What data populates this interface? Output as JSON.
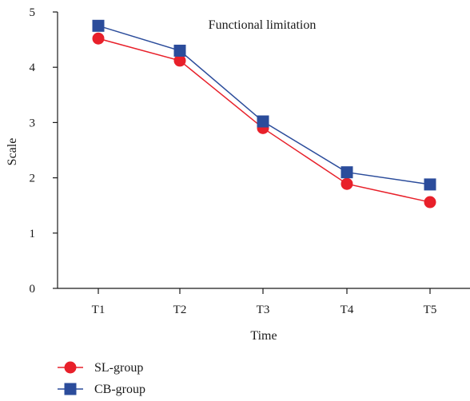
{
  "chart_data": {
    "type": "line",
    "title": "Functional limitation",
    "xlabel": "Time",
    "ylabel": "Scale",
    "categories": [
      "T1",
      "T2",
      "T3",
      "T4",
      "T5"
    ],
    "ylim": [
      0,
      5
    ],
    "yticks": [
      0,
      1,
      2,
      3,
      4,
      5
    ],
    "grid": false,
    "legend_position": "bottom-left",
    "series": [
      {
        "name": "SL-group",
        "marker": "circle",
        "color": "#e8202a",
        "values": [
          4.52,
          4.12,
          2.9,
          1.89,
          1.56
        ]
      },
      {
        "name": "CB-group",
        "marker": "square",
        "color": "#2b4c9b",
        "values": [
          4.75,
          4.3,
          3.02,
          2.1,
          1.88
        ]
      }
    ]
  }
}
